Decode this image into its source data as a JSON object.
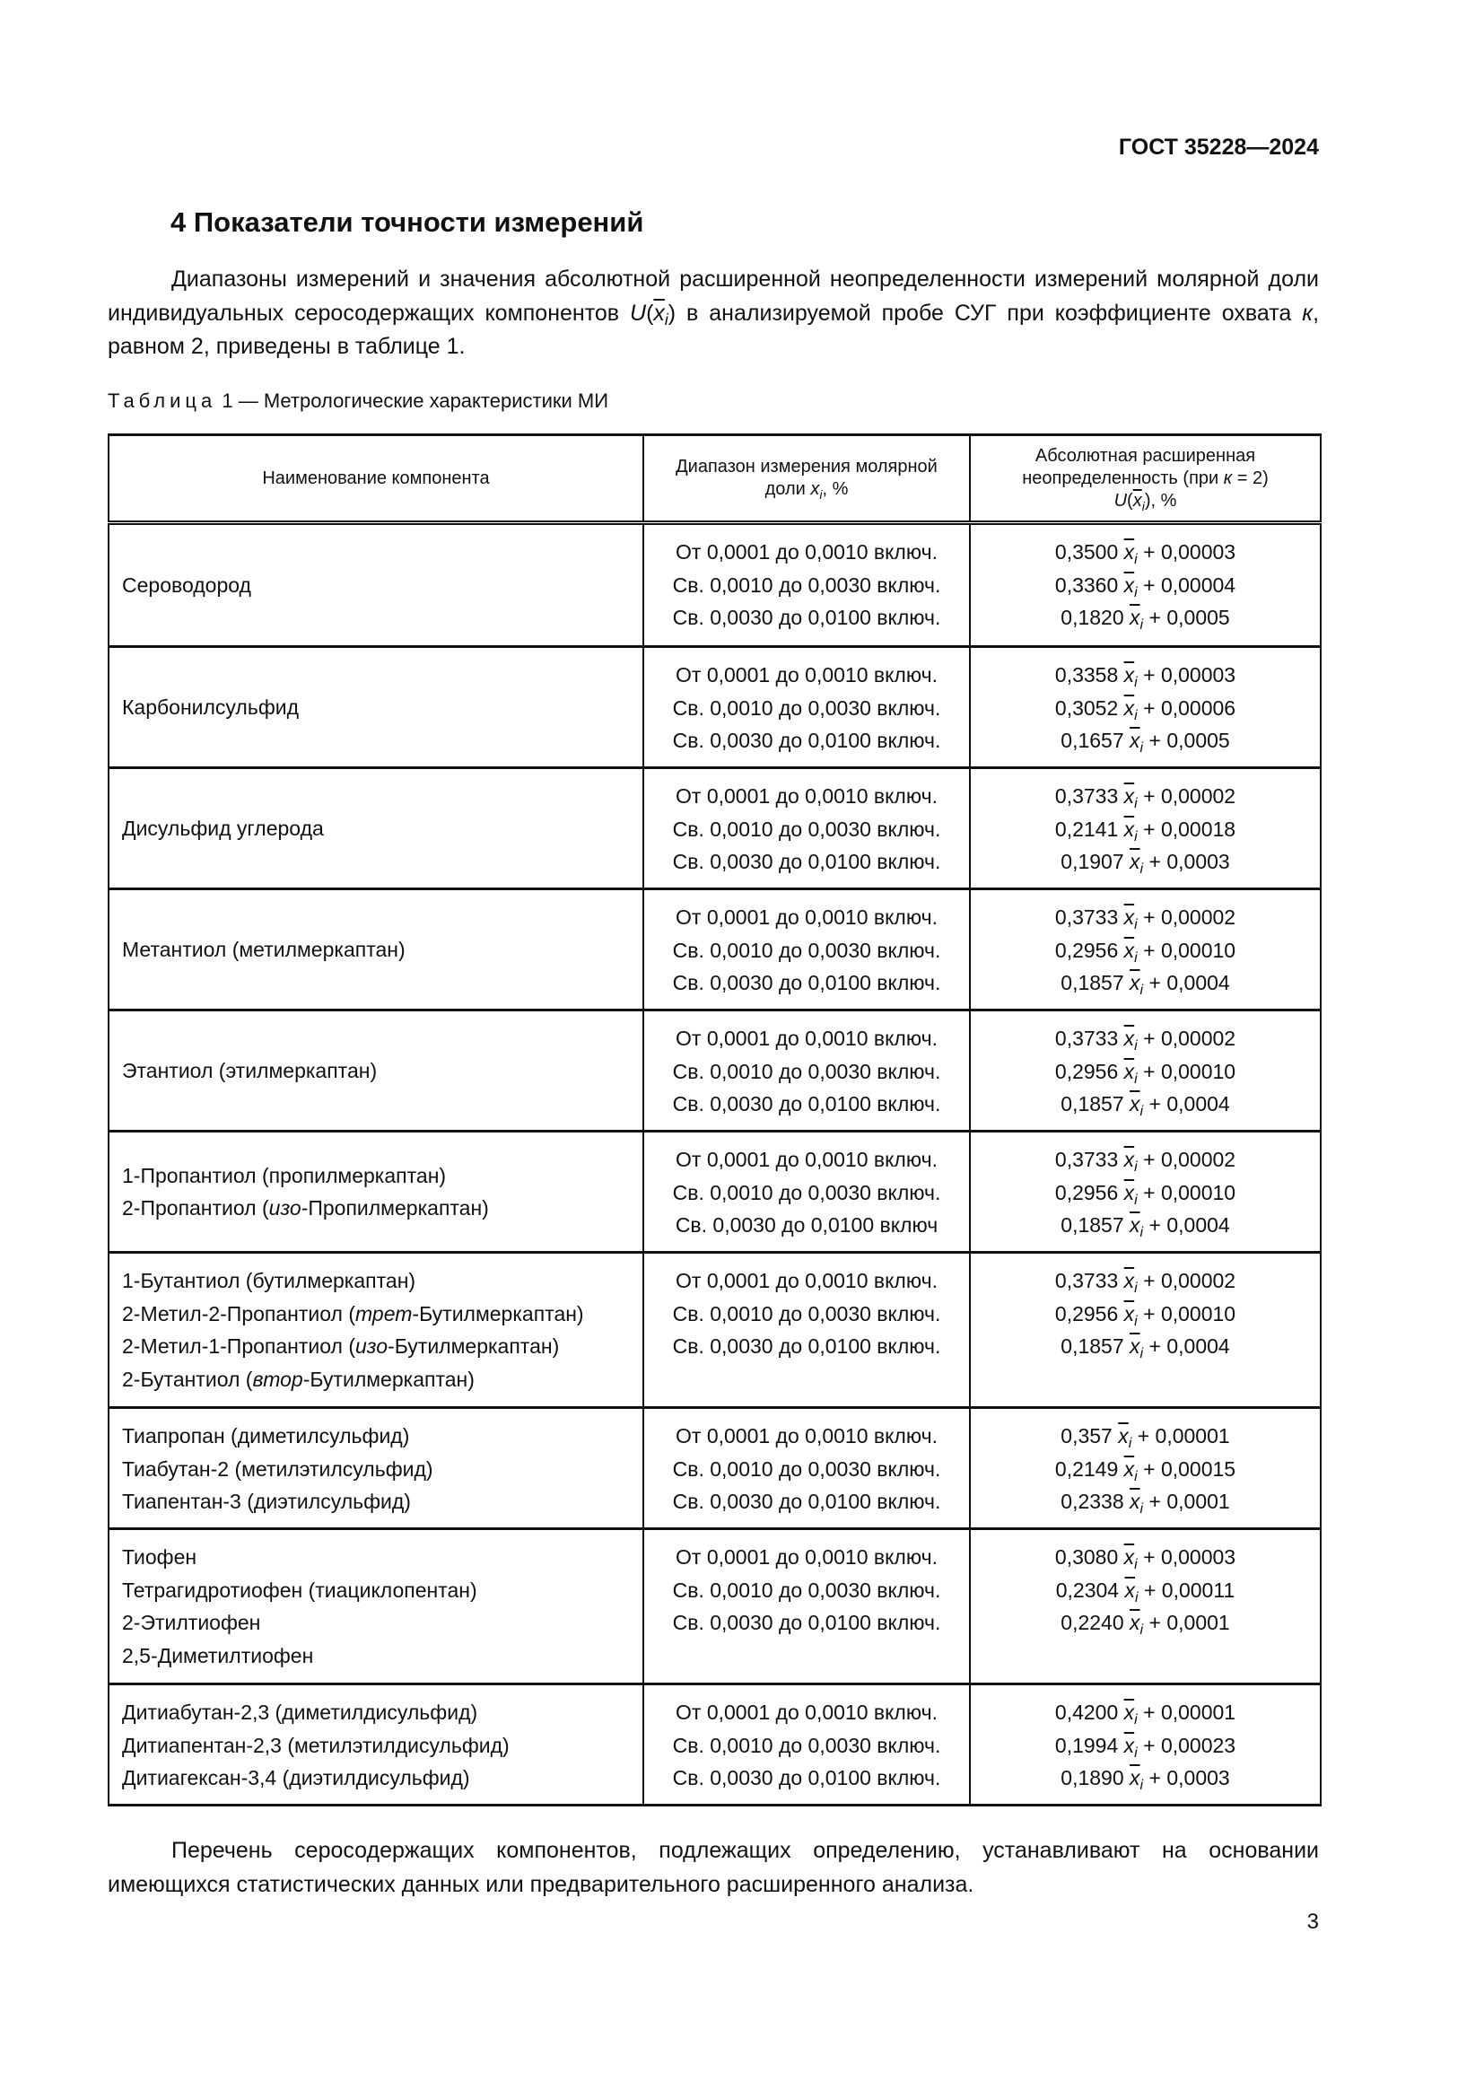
{
  "header": {
    "doc_code": "ГОСТ 35228—2024"
  },
  "section": {
    "title": "4 Показатели точности измерений"
  },
  "intro": {
    "part1": "Диапазоны измерений и значения абсолютной расширенной неопределенности измерений молярной доли индивидуальных серосодержащих компонентов ",
    "symbol": "U",
    "part2": " в анализируемой пробе СУГ при коэффициенте охвата ",
    "k": "к",
    "part3": ", равном 2, приведены в таблице 1."
  },
  "table": {
    "caption_prefix": "Таблица",
    "caption_rest": "1 — Метрологические характеристики МИ",
    "headers": {
      "name": "Наименование компонента",
      "range_1": "Диапазон измерения молярной доли ",
      "range_2": ", %",
      "unc_1": "Абсолютная расширенная",
      "unc_2": "неопределенность (при ",
      "unc_k": "к",
      "unc_3": " = 2)",
      "unc_U": "U",
      "unc_4": ", %"
    },
    "var": "x",
    "sub": "i",
    "plus": "+",
    "rows": [
      {
        "names": [
          [
            "Сероводород"
          ]
        ],
        "ranges": [
          "От 0,0001 до 0,0010 включ.",
          "Св. 0,0010 до 0,0030 включ.",
          "Св. 0,0030 до 0,0100 включ."
        ],
        "unc": [
          {
            "coef": "0,3500",
            "const": "0,00003"
          },
          {
            "coef": "0,3360",
            "const": "0,00004"
          },
          {
            "coef": "0,1820",
            "const": "0,0005"
          }
        ]
      },
      {
        "names": [
          [
            "Карбонилсульфид"
          ]
        ],
        "ranges": [
          "От 0,0001 до 0,0010 включ.",
          "Св. 0,0010 до 0,0030 включ.",
          "Св. 0,0030 до 0,0100 включ."
        ],
        "unc": [
          {
            "coef": "0,3358",
            "const": "0,00003"
          },
          {
            "coef": "0,3052",
            "const": "0,00006"
          },
          {
            "coef": "0,1657",
            "const": "0,0005"
          }
        ]
      },
      {
        "names": [
          [
            "Дисульфид углерода"
          ]
        ],
        "ranges": [
          "От 0,0001 до 0,0010 включ.",
          "Св. 0,0010 до 0,0030 включ.",
          "Св. 0,0030 до 0,0100 включ."
        ],
        "unc": [
          {
            "coef": "0,3733",
            "const": "0,00002"
          },
          {
            "coef": "0,2141",
            "const": "0,00018"
          },
          {
            "coef": "0,1907",
            "const": "0,0003"
          }
        ]
      },
      {
        "names": [
          [
            "Метантиол (метилмеркаптан)"
          ]
        ],
        "ranges": [
          "От 0,0001 до 0,0010 включ.",
          "Св. 0,0010 до 0,0030 включ.",
          "Св. 0,0030 до 0,0100 включ."
        ],
        "unc": [
          {
            "coef": "0,3733",
            "const": "0,00002"
          },
          {
            "coef": "0,2956",
            "const": "0,00010"
          },
          {
            "coef": "0,1857",
            "const": "0,0004"
          }
        ]
      },
      {
        "names": [
          [
            "Этантиол (этилмеркаптан)"
          ]
        ],
        "ranges": [
          "От 0,0001 до 0,0010 включ.",
          "Св. 0,0010 до 0,0030 включ.",
          "Св. 0,0030 до 0,0100 включ."
        ],
        "unc": [
          {
            "coef": "0,3733",
            "const": "0,00002"
          },
          {
            "coef": "0,2956",
            "const": "0,00010"
          },
          {
            "coef": "0,1857",
            "const": "0,0004"
          }
        ]
      },
      {
        "names": [
          [
            "1-Пропантиол (пропилмеркаптан)"
          ],
          [
            "2-Пропантиол (",
            "изо",
            "-Пропилмеркаптан)"
          ]
        ],
        "ranges": [
          "От 0,0001 до 0,0010 включ.",
          "Св. 0,0010 до 0,0030 включ.",
          "Св. 0,0030 до 0,0100 включ"
        ],
        "unc": [
          {
            "coef": "0,3733",
            "const": "0,00002"
          },
          {
            "coef": "0,2956",
            "const": "0,00010"
          },
          {
            "coef": "0,1857",
            "const": "0,0004"
          }
        ]
      },
      {
        "names": [
          [
            "1-Бутантиол (бутилмеркаптан)"
          ],
          [
            "2-Метил-2-Пропантиол (",
            "трет",
            "-Бутилмеркаптан)"
          ],
          [
            "2-Метил-1-Пропантиол (",
            "изо",
            "-Бутилмеркаптан)"
          ],
          [
            "2-Бутантиол (",
            "втор",
            "-Бутилмеркаптан)"
          ]
        ],
        "ranges": [
          "От 0,0001 до 0,0010 включ.",
          "Св. 0,0010 до 0,0030 включ.",
          "Св. 0,0030 до 0,0100 включ."
        ],
        "unc": [
          {
            "coef": "0,3733",
            "const": "0,00002"
          },
          {
            "coef": "0,2956",
            "const": "0,00010"
          },
          {
            "coef": "0,1857",
            "const": "0,0004"
          }
        ]
      },
      {
        "names": [
          [
            "Тиапропан (диметилсульфид)"
          ],
          [
            "Тиабутан-2 (метилэтилсульфид)"
          ],
          [
            "Тиапентан-3 (диэтилсульфид)"
          ]
        ],
        "ranges": [
          "От 0,0001 до 0,0010 включ.",
          "Св. 0,0010 до 0,0030 включ.",
          "Св. 0,0030 до 0,0100 включ."
        ],
        "unc": [
          {
            "coef": "0,357",
            "const": "0,00001"
          },
          {
            "coef": "0,2149",
            "const": "0,00015"
          },
          {
            "coef": "0,2338",
            "const": "0,0001"
          }
        ]
      },
      {
        "names": [
          [
            "Тиофен"
          ],
          [
            "Тетрагидротиофен (тиациклопентан)"
          ],
          [
            "2-Этилтиофен"
          ],
          [
            "2,5-Диметилтиофен"
          ]
        ],
        "ranges": [
          "От 0,0001 до 0,0010 включ.",
          "Св. 0,0010 до 0,0030 включ.",
          "Св. 0,0030 до 0,0100 включ."
        ],
        "unc": [
          {
            "coef": "0,3080",
            "const": "0,00003"
          },
          {
            "coef": "0,2304",
            "const": "0,00011"
          },
          {
            "coef": "0,2240",
            "const": "0,0001"
          }
        ]
      },
      {
        "names": [
          [
            "Дитиабутан-2,3 (диметилдисульфид)"
          ],
          [
            "Дитиапентан-2,3 (метилэтилдисульфид)"
          ],
          [
            "Дитиагексан-3,4 (диэтилдисульфид)"
          ]
        ],
        "ranges": [
          "От 0,0001 до 0,0010 включ.",
          "Св. 0,0010 до 0,0030 включ.",
          "Св. 0,0030 до 0,0100 включ."
        ],
        "unc": [
          {
            "coef": "0,4200",
            "const": "0,00001"
          },
          {
            "coef": "0,1994",
            "const": "0,00023"
          },
          {
            "coef": "0,1890",
            "const": "0,0003"
          }
        ]
      }
    ]
  },
  "closing": {
    "text": "Перечень серосодержащих компонентов, подлежащих определению, устанавливают на основании имеющихся статистических данных или предварительного расширенного анализа."
  },
  "page_number": "3"
}
